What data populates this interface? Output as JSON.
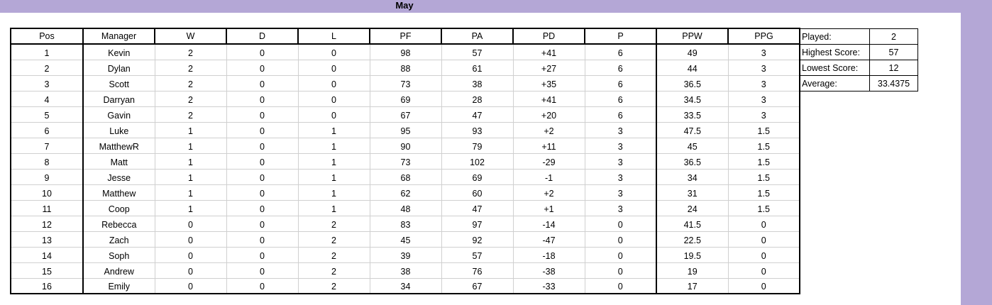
{
  "sheet": {
    "title": "May"
  },
  "table": {
    "headers": [
      "Pos",
      "Manager",
      "W",
      "D",
      "L",
      "PF",
      "PA",
      "PD",
      "P",
      "PPW",
      "PPG"
    ],
    "rows": [
      [
        "1",
        "Kevin",
        "2",
        "0",
        "0",
        "98",
        "57",
        "+41",
        "6",
        "49",
        "3"
      ],
      [
        "2",
        "Dylan",
        "2",
        "0",
        "0",
        "88",
        "61",
        "+27",
        "6",
        "44",
        "3"
      ],
      [
        "3",
        "Scott",
        "2",
        "0",
        "0",
        "73",
        "38",
        "+35",
        "6",
        "36.5",
        "3"
      ],
      [
        "4",
        "Darryan",
        "2",
        "0",
        "0",
        "69",
        "28",
        "+41",
        "6",
        "34.5",
        "3"
      ],
      [
        "5",
        "Gavin",
        "2",
        "0",
        "0",
        "67",
        "47",
        "+20",
        "6",
        "33.5",
        "3"
      ],
      [
        "6",
        "Luke",
        "1",
        "0",
        "1",
        "95",
        "93",
        "+2",
        "3",
        "47.5",
        "1.5"
      ],
      [
        "7",
        "MatthewR",
        "1",
        "0",
        "1",
        "90",
        "79",
        "+11",
        "3",
        "45",
        "1.5"
      ],
      [
        "8",
        "Matt",
        "1",
        "0",
        "1",
        "73",
        "102",
        "-29",
        "3",
        "36.5",
        "1.5"
      ],
      [
        "9",
        "Jesse",
        "1",
        "0",
        "1",
        "68",
        "69",
        "-1",
        "3",
        "34",
        "1.5"
      ],
      [
        "10",
        "Matthew",
        "1",
        "0",
        "1",
        "62",
        "60",
        "+2",
        "3",
        "31",
        "1.5"
      ],
      [
        "11",
        "Coop",
        "1",
        "0",
        "1",
        "48",
        "47",
        "+1",
        "3",
        "24",
        "1.5"
      ],
      [
        "12",
        "Rebecca",
        "0",
        "0",
        "2",
        "83",
        "97",
        "-14",
        "0",
        "41.5",
        "0"
      ],
      [
        "13",
        "Zach",
        "0",
        "0",
        "2",
        "45",
        "92",
        "-47",
        "0",
        "22.5",
        "0"
      ],
      [
        "14",
        "Soph",
        "0",
        "0",
        "2",
        "39",
        "57",
        "-18",
        "0",
        "19.5",
        "0"
      ],
      [
        "15",
        "Andrew",
        "0",
        "0",
        "2",
        "38",
        "76",
        "-38",
        "0",
        "19",
        "0"
      ],
      [
        "16",
        "Emily",
        "0",
        "0",
        "2",
        "34",
        "67",
        "-33",
        "0",
        "17",
        "0"
      ]
    ]
  },
  "stats": [
    {
      "label": "Played:",
      "value": "2"
    },
    {
      "label": "Highest Score:",
      "value": "57"
    },
    {
      "label": "Lowest Score:",
      "value": "12"
    },
    {
      "label": "Average:",
      "value": "33.4375"
    }
  ],
  "colors": {
    "banner": "#b4a7d6",
    "border": "#000000",
    "gridline": "#d0d0d0"
  }
}
